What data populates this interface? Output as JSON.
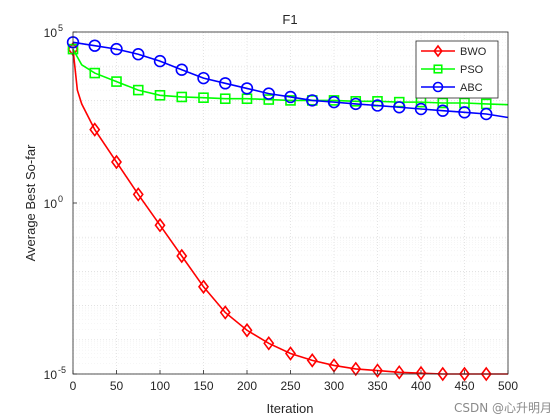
{
  "chart_data": {
    "type": "line",
    "title": "F1",
    "xlabel": "Iteration",
    "ylabel": "Average Best So-far",
    "xlim": [
      0,
      500
    ],
    "ylim_log10": [
      -5,
      5
    ],
    "yscale": "log",
    "x_ticks": [
      0,
      50,
      100,
      150,
      200,
      250,
      300,
      350,
      400,
      450,
      500
    ],
    "y_ticks": [
      {
        "exp": -5,
        "base": "10",
        "sup": "-5"
      },
      {
        "exp": 0,
        "base": "10",
        "sup": "0"
      },
      {
        "exp": 5,
        "base": "10",
        "sup": "5"
      }
    ],
    "grid": true,
    "legend_position": "top-right",
    "series": [
      {
        "name": "BWO",
        "color": "#ff0000",
        "marker": "diamond",
        "points": [
          [
            0,
            31600.0
          ],
          [
            5,
            2000.0
          ],
          [
            10,
            790.0
          ],
          [
            25,
            140.0
          ],
          [
            50,
            15.8
          ],
          [
            75,
            1.78
          ],
          [
            100,
            0.224
          ],
          [
            125,
            0.0282
          ],
          [
            150,
            0.00355
          ],
          [
            175,
            0.00063
          ],
          [
            200,
            0.00019
          ],
          [
            225,
            7.9e-05
          ],
          [
            250,
            3.98e-05
          ],
          [
            275,
            2.5e-05
          ],
          [
            300,
            1.78e-05
          ],
          [
            325,
            1.41e-05
          ],
          [
            350,
            1.26e-05
          ],
          [
            375,
            1.12e-05
          ],
          [
            400,
            1.06e-05
          ],
          [
            425,
            1e-05
          ],
          [
            450,
            1e-05
          ],
          [
            475,
            1e-05
          ],
          [
            500,
            1e-05
          ]
        ],
        "markers_x": [
          0,
          25,
          50,
          75,
          100,
          125,
          150,
          175,
          200,
          225,
          250,
          275,
          300,
          325,
          350,
          375,
          400,
          425,
          450,
          475
        ]
      },
      {
        "name": "PSO",
        "color": "#00ff00",
        "marker": "square",
        "points": [
          [
            0,
            31600.0
          ],
          [
            10,
            11000.0
          ],
          [
            25,
            6300.0
          ],
          [
            50,
            3550.0
          ],
          [
            75,
            2000.0
          ],
          [
            100,
            1410.0
          ],
          [
            125,
            1260.0
          ],
          [
            150,
            1200.0
          ],
          [
            175,
            1120.0
          ],
          [
            200,
            1120.0
          ],
          [
            225,
            1060.0
          ],
          [
            250,
            1000.0
          ],
          [
            275,
            1000.0
          ],
          [
            300,
            1000.0
          ],
          [
            325,
            940.0
          ],
          [
            350,
            940.0
          ],
          [
            375,
            890.0
          ],
          [
            400,
            890.0
          ],
          [
            425,
            840.0
          ],
          [
            450,
            840.0
          ],
          [
            475,
            790.0
          ],
          [
            500,
            750.0
          ]
        ],
        "markers_x": [
          0,
          25,
          50,
          75,
          100,
          125,
          150,
          175,
          200,
          225,
          250,
          275,
          300,
          325,
          350,
          375,
          400,
          425,
          450,
          475
        ]
      },
      {
        "name": "ABC",
        "color": "#0000ff",
        "marker": "circle",
        "points": [
          [
            0,
            50000.0
          ],
          [
            25,
            39800.0
          ],
          [
            50,
            31600.0
          ],
          [
            75,
            22400.0
          ],
          [
            100,
            14100.0
          ],
          [
            125,
            7900.0
          ],
          [
            150,
            4470.0
          ],
          [
            175,
            3160.0
          ],
          [
            200,
            2240.0
          ],
          [
            225,
            1580.0
          ],
          [
            250,
            1260.0
          ],
          [
            275,
            1000.0
          ],
          [
            300,
            890.0
          ],
          [
            325,
            790.0
          ],
          [
            350,
            710.0
          ],
          [
            375,
            630.0
          ],
          [
            400,
            560.0
          ],
          [
            425,
            500.0
          ],
          [
            450,
            447.0
          ],
          [
            475,
            400.0
          ],
          [
            500,
            316.0
          ]
        ],
        "markers_x": [
          0,
          25,
          50,
          75,
          100,
          125,
          150,
          175,
          200,
          225,
          250,
          275,
          300,
          325,
          350,
          375,
          400,
          425,
          450,
          475
        ]
      }
    ]
  },
  "watermark": "CSDN @心升明月"
}
